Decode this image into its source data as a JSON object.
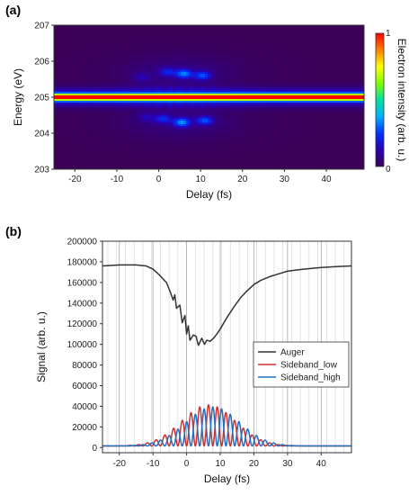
{
  "panels": {
    "a": "(a)",
    "b": "(b)"
  },
  "chart_data": [
    {
      "type": "heatmap",
      "panel": "(a)",
      "xlabel": "Delay (fs)",
      "ylabel": "Energy (eV)",
      "xlim": [
        -25,
        49
      ],
      "ylim": [
        203,
        207
      ],
      "xticks": [
        -20,
        -10,
        0,
        10,
        20,
        30,
        40
      ],
      "yticks": [
        203,
        204,
        205,
        206,
        207
      ],
      "colorbar": {
        "label": "Electron intensity (arb. u.)",
        "min_label": "0",
        "max_label": "1",
        "colormap": [
          "#3a0058",
          "#2a00b0",
          "#0030ff",
          "#00b0ff",
          "#00e0a0",
          "#7fff00",
          "#ffff00",
          "#ff8000",
          "#ff0000"
        ]
      },
      "main_band_energy": 205.0,
      "hotspots": [
        {
          "delay": 6,
          "energy": 205.65,
          "intensity": 0.28
        },
        {
          "delay": 10.5,
          "energy": 205.6,
          "intensity": 0.24
        },
        {
          "delay": 2,
          "energy": 205.7,
          "intensity": 0.16
        },
        {
          "delay": 5.5,
          "energy": 204.3,
          "intensity": 0.3
        },
        {
          "delay": 11,
          "energy": 204.35,
          "intensity": 0.24
        },
        {
          "delay": 1,
          "energy": 204.4,
          "intensity": 0.18
        },
        {
          "delay": -3,
          "energy": 204.45,
          "intensity": 0.1
        },
        {
          "delay": -4,
          "energy": 205.55,
          "intensity": 0.1
        }
      ]
    },
    {
      "type": "line",
      "panel": "(b)",
      "xlabel": "Delay (fs)",
      "ylabel": "Signal (arb. u.)",
      "xlim": [
        -25,
        49
      ],
      "ylim": [
        -5000,
        200000
      ],
      "xticks": [
        -20,
        -10,
        0,
        10,
        20,
        30,
        40
      ],
      "yticks": [
        0,
        20000,
        40000,
        60000,
        80000,
        100000,
        120000,
        140000,
        160000,
        180000,
        200000
      ],
      "vertical_grid_step": 2.6,
      "legend_position": "right",
      "series": [
        {
          "name": "Auger",
          "color": "#333333",
          "x": [
            -25,
            -20,
            -15,
            -12,
            -10,
            -8,
            -6,
            -5,
            -4,
            -3.5,
            -3,
            -2,
            -1.3,
            -0.5,
            0,
            0.5,
            1,
            2,
            2.8,
            3.5,
            4.5,
            5.3,
            6,
            7,
            8,
            9,
            10,
            12,
            14,
            16,
            18,
            20,
            22,
            25,
            28,
            30,
            35,
            40,
            45,
            49
          ],
          "y": [
            176000,
            177000,
            177000,
            176000,
            173000,
            167000,
            160000,
            152000,
            143000,
            148000,
            135000,
            138000,
            121000,
            128000,
            110000,
            118000,
            104000,
            109000,
            108000,
            99000,
            106000,
            100000,
            104000,
            103000,
            106000,
            110000,
            115000,
            126000,
            136000,
            145000,
            152000,
            158000,
            162000,
            166000,
            169000,
            171000,
            173000,
            174500,
            175500,
            176000
          ]
        },
        {
          "name": "Sideband_low",
          "color": "#d03030",
          "amplitude": 40000,
          "center": 6.5,
          "sigma": 8.0,
          "period": 2.6,
          "phase_peak": 6.5,
          "baseline": 1500,
          "x_range": [
            -25,
            49
          ]
        },
        {
          "name": "Sideband_high",
          "color": "#2070c0",
          "amplitude": 38000,
          "center": 7.8,
          "sigma": 8.0,
          "period": 2.6,
          "phase_peak": 7.8,
          "baseline": 1500,
          "x_range": [
            -25,
            49
          ]
        }
      ]
    }
  ]
}
